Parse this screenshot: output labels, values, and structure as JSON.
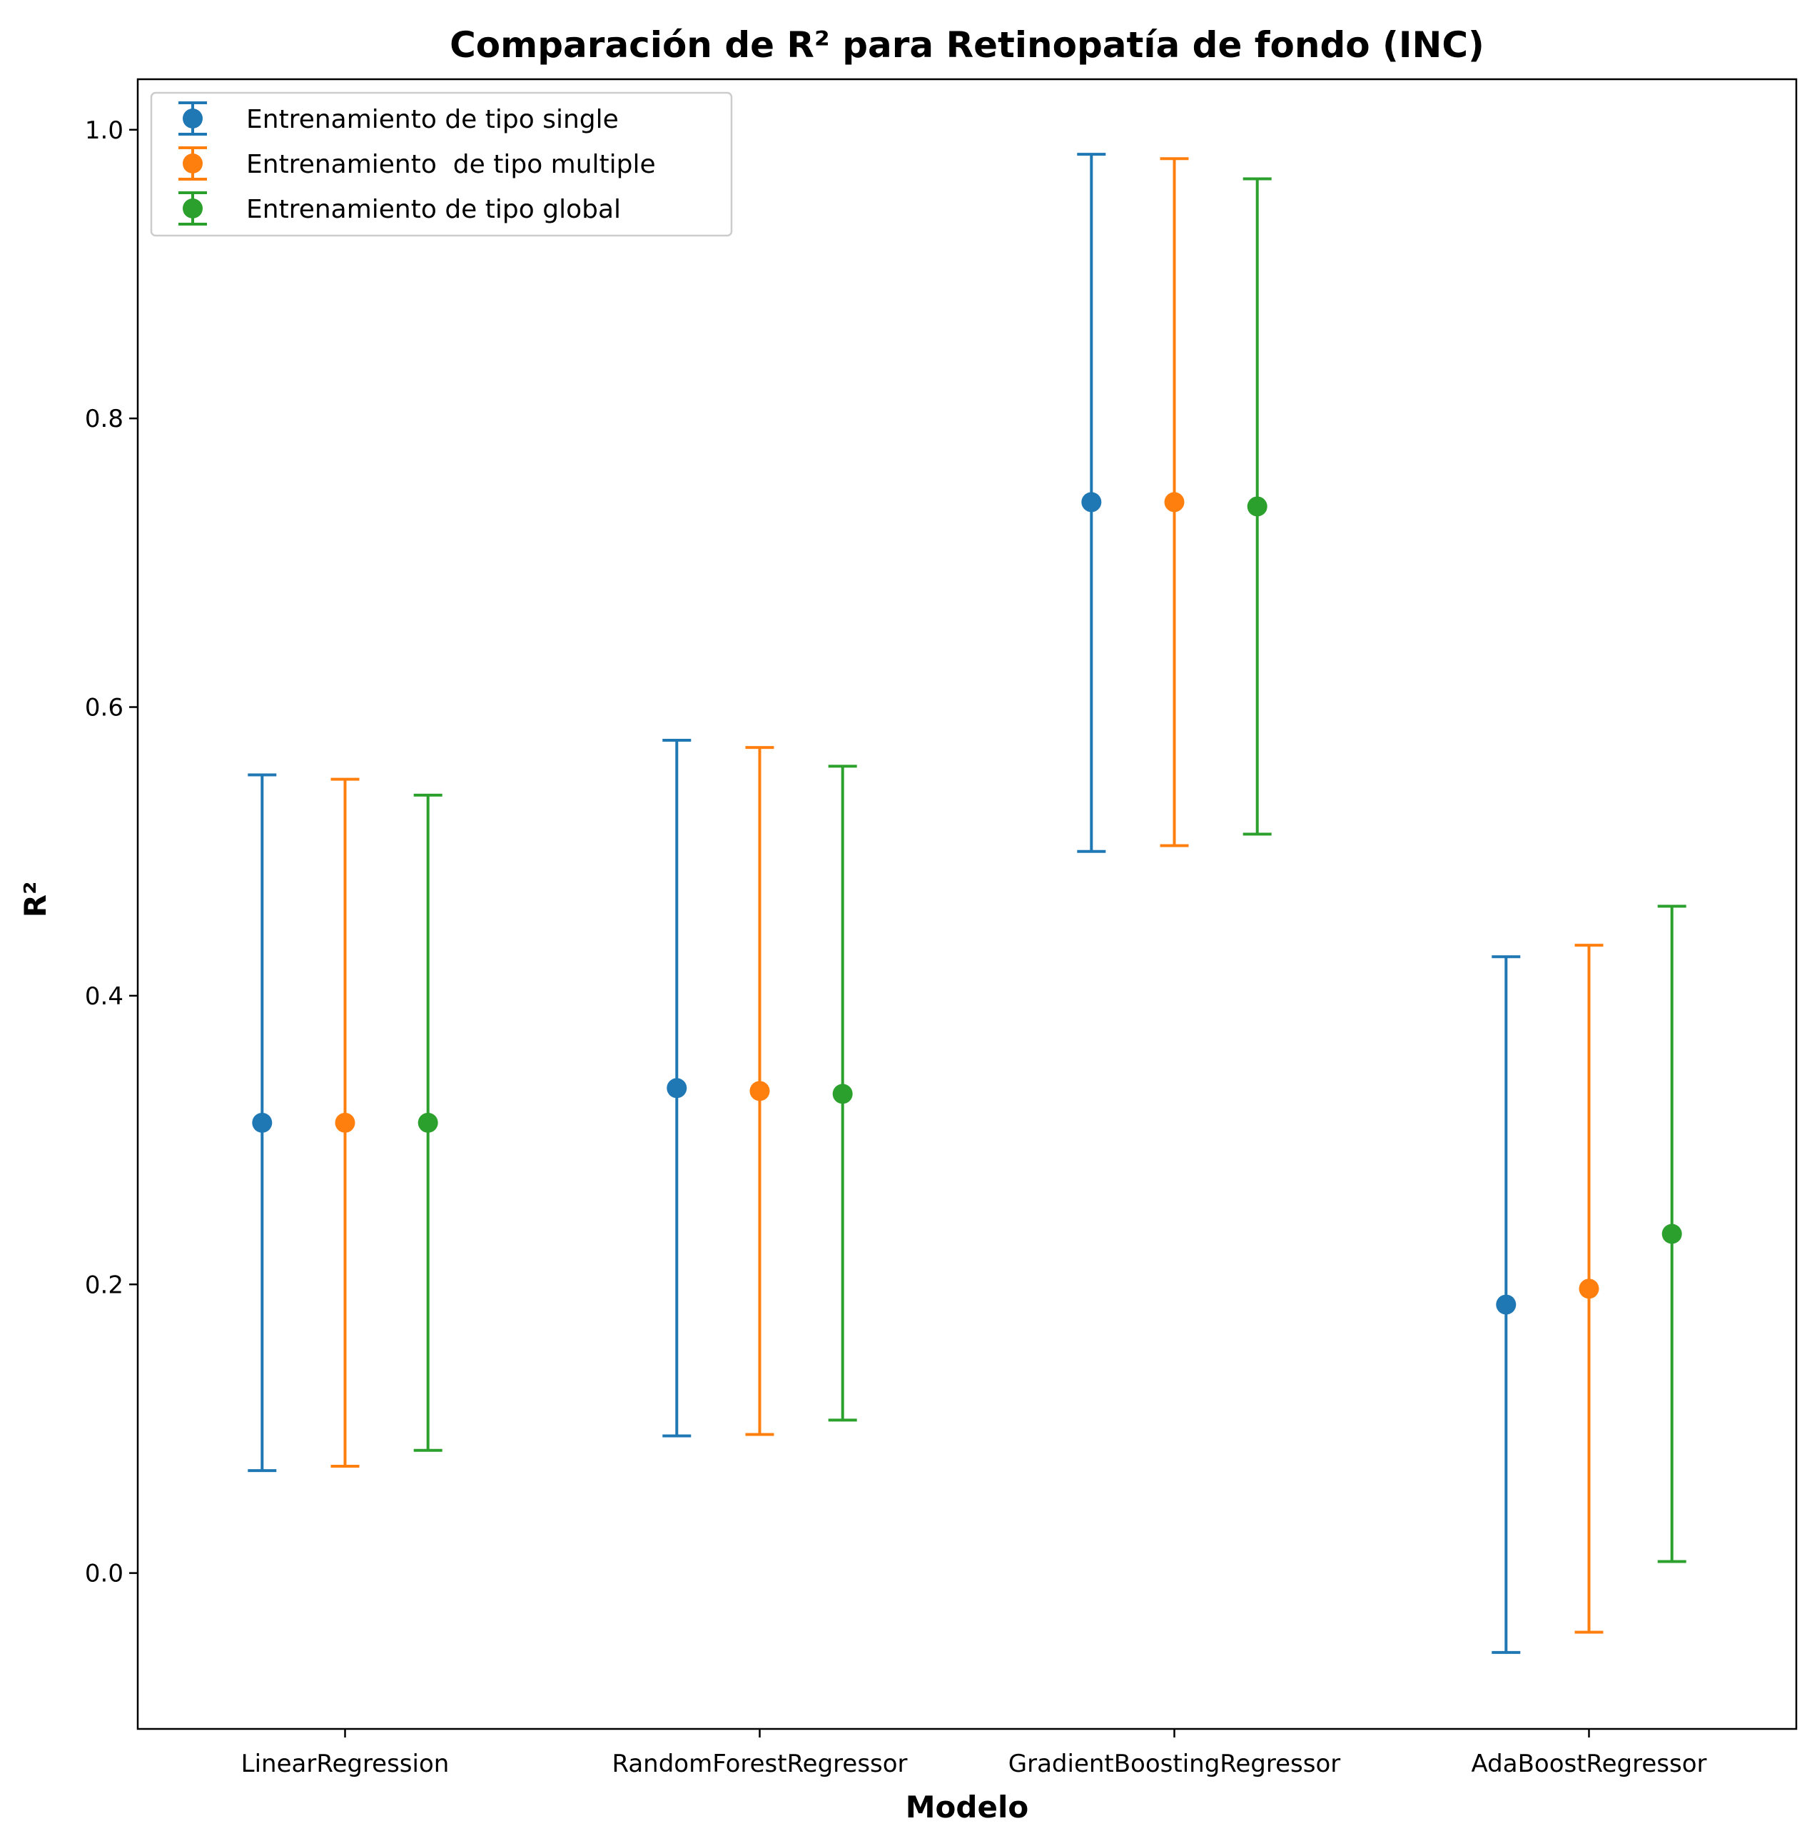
{
  "chart_data": {
    "type": "scatter",
    "title": "Comparación de R² para Retinopatía de fondo (INC)",
    "xlabel": "Modelo",
    "ylabel": "R²",
    "ylim": [
      -0.108,
      1.035
    ],
    "yticks": [
      "0.0",
      "0.2",
      "0.4",
      "0.6",
      "0.8",
      "1.0"
    ],
    "grid": false,
    "legend_position": "top-left",
    "categories": [
      "LinearRegression",
      "RandomForestRegressor",
      "GradientBoostingRegressor",
      "AdaBoostRegressor"
    ],
    "series": [
      {
        "name": "Entrenamiento de tipo single",
        "color": "#1f77b4",
        "values": [
          0.312,
          0.336,
          0.742,
          0.186
        ],
        "lower": [
          0.071,
          0.095,
          0.5,
          -0.055
        ],
        "upper": [
          0.553,
          0.577,
          0.983,
          0.427
        ]
      },
      {
        "name": "Entrenamiento  de tipo multiple",
        "color": "#ff7f0e",
        "values": [
          0.312,
          0.334,
          0.742,
          0.197
        ],
        "lower": [
          0.074,
          0.096,
          0.504,
          -0.041
        ],
        "upper": [
          0.55,
          0.572,
          0.98,
          0.435
        ]
      },
      {
        "name": "Entrenamiento de tipo global",
        "color": "#2ca02c",
        "values": [
          0.312,
          0.332,
          0.739,
          0.235
        ],
        "lower": [
          0.085,
          0.106,
          0.512,
          0.008
        ],
        "upper": [
          0.539,
          0.559,
          0.966,
          0.462
        ]
      }
    ]
  }
}
